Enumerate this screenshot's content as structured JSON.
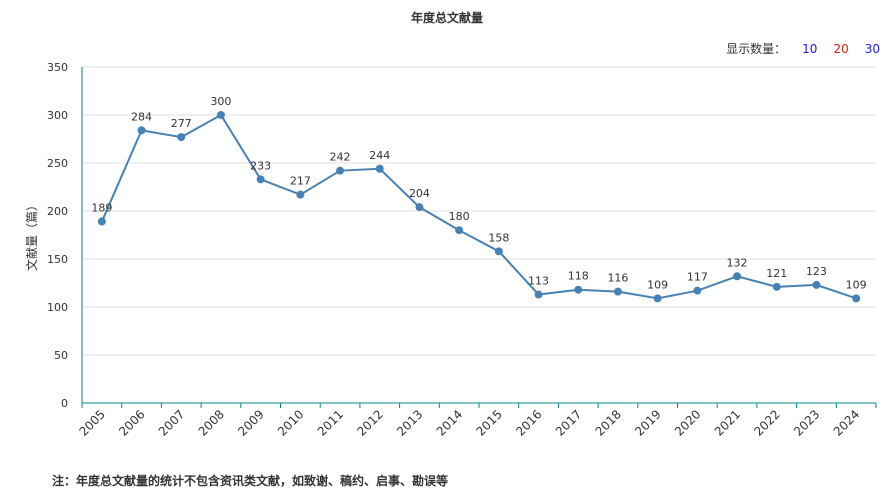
{
  "page": {
    "show_count_label": "显示数量：",
    "options": [
      "10",
      "20",
      "30"
    ],
    "note": "注：年度总文献量的统计不包含资讯类文献，如致谢、稿约、启事、勘误等"
  },
  "chart_data": {
    "type": "line",
    "title": "年度总文献量",
    "xlabel": "",
    "ylabel": "文献量（篇）",
    "ylim": [
      0,
      350
    ],
    "yticks": [
      0,
      50,
      100,
      150,
      200,
      250,
      300,
      350
    ],
    "grid": true,
    "categories": [
      "2005",
      "2006",
      "2007",
      "2008",
      "2009",
      "2010",
      "2011",
      "2012",
      "2013",
      "2014",
      "2015",
      "2016",
      "2017",
      "2018",
      "2019",
      "2020",
      "2021",
      "2022",
      "2023",
      "2024"
    ],
    "series": [
      {
        "values": [
          189,
          284,
          277,
          300,
          233,
          217,
          242,
          244,
          204,
          180,
          158,
          113,
          118,
          116,
          109,
          117,
          132,
          121,
          123,
          109
        ]
      }
    ],
    "colors": {
      "line": "#4682b4",
      "axis": "#008b8b",
      "grid": "#e0e0e0"
    }
  }
}
